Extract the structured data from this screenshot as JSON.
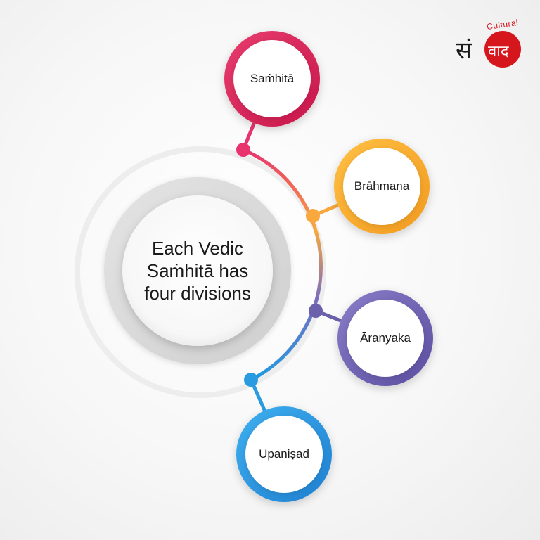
{
  "center": {
    "text": "Each Vedic Saṁhitā has four divisions"
  },
  "nodes": [
    {
      "label": "Saṁhitā",
      "color": "#c8164a",
      "color_light": "#e83d6e",
      "dot_color": "#e8336e"
    },
    {
      "label": "Brāhmaṇa",
      "color": "#f29a1f",
      "color_light": "#ffc043",
      "dot_color": "#f8a83c"
    },
    {
      "label": "Āranyaka",
      "color": "#5a4ea0",
      "color_light": "#8a7cc8",
      "dot_color": "#6b60ac"
    },
    {
      "label": "Upaniṣad",
      "color": "#1e7fd0",
      "color_light": "#3fb0f0",
      "dot_color": "#2a9be0"
    }
  ],
  "logo": {
    "word": "Cultural",
    "devanagari": "संवाद",
    "color": "#d6161d"
  }
}
